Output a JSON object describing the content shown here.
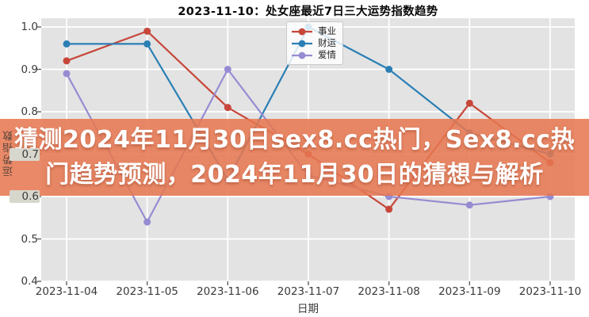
{
  "chart_data": {
    "type": "line",
    "title": "2023-11-10：处女座最近7日三大运势指数趋势",
    "xlabel": "日期",
    "ylabel": "运势指数",
    "categories": [
      "2023-11-04",
      "2023-11-05",
      "2023-11-06",
      "2023-11-07",
      "2023-11-08",
      "2023-11-09",
      "2023-11-10"
    ],
    "series": [
      {
        "name": "事业",
        "color": "#c7473a",
        "values": [
          0.92,
          0.99,
          0.81,
          0.7,
          0.57,
          0.82,
          0.68
        ]
      },
      {
        "name": "财运",
        "color": "#2b7fb5",
        "values": [
          0.96,
          0.96,
          0.64,
          1.0,
          0.9,
          0.75,
          0.7
        ]
      },
      {
        "name": "爱情",
        "color": "#968cd2",
        "values": [
          0.89,
          0.54,
          0.9,
          0.65,
          0.6,
          0.58,
          0.6
        ]
      }
    ],
    "ylim": [
      0.4,
      1.02
    ],
    "yticks": [
      "1.0",
      "0.9",
      "0.8",
      "0.7",
      "0.6",
      "0.5",
      "0.4"
    ],
    "yticks_over_banner": [
      "0.7",
      "0.6"
    ],
    "grid": true,
    "legend_position": "top-center",
    "plot_bg": "#e3e3e3",
    "grid_color": "#ffffff",
    "tick_color": "#555555"
  },
  "banner": {
    "full_text": "猜测2024年11月30日sex8.cc热门，Sex8.cc热门趋势预测，2024年11月30日的猜想与解析",
    "lines": [
      "猜测2024年11月30日sex8.cc热门，Sex8.cc热",
      "门趋势预测，2024年11月30日的猜想与解析"
    ],
    "bg_color": "#e77850",
    "text_color": "#ffffff"
  }
}
